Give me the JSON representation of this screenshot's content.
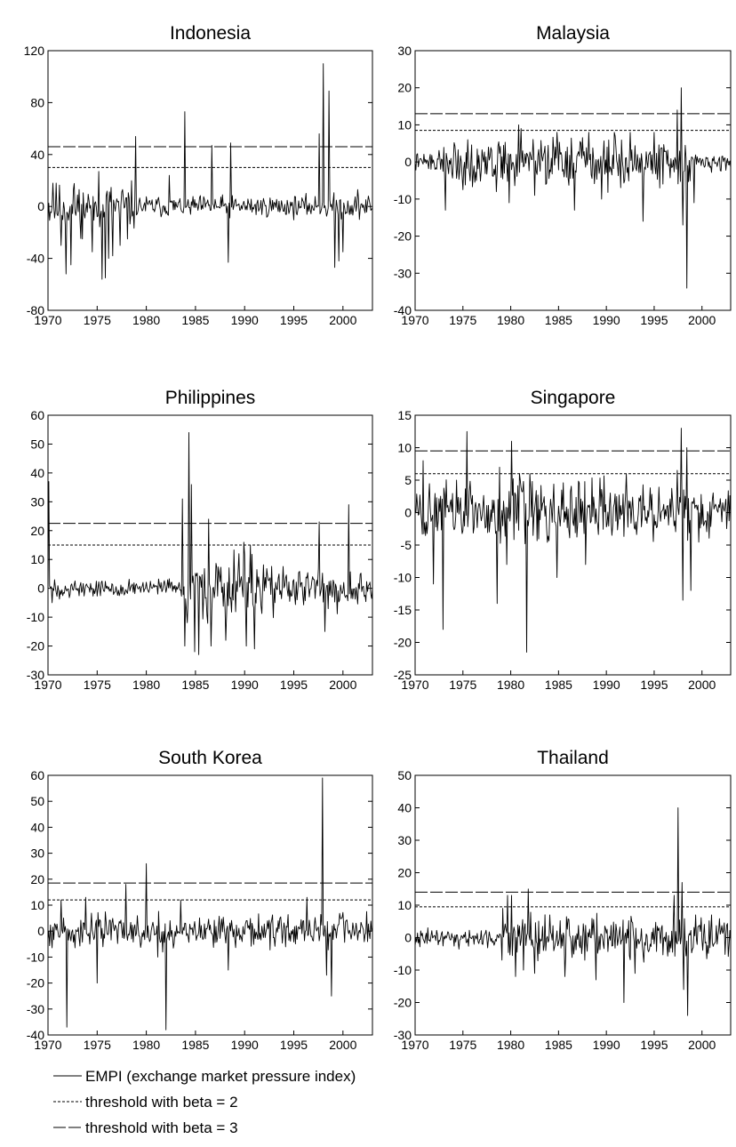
{
  "figure_type": "multi-panel time series",
  "line_color": "#000000",
  "legend": {
    "items": [
      {
        "label": "EMPI (exchange market pressure index)",
        "style": "solid"
      },
      {
        "label": "threshold with beta = 2",
        "style": "short-dash"
      },
      {
        "label": "threshold with beta = 3",
        "style": "long-dash"
      }
    ]
  },
  "chart_data": [
    {
      "type": "line",
      "title": "Indonesia",
      "x_ticks": [
        "1970",
        "1975",
        "1980",
        "1985",
        "1990",
        "1995",
        "2000"
      ],
      "xlim": [
        1970,
        2003
      ],
      "y_ticks": [
        "-80",
        "-40",
        "0",
        "40",
        "80",
        "120"
      ],
      "ylim": [
        -80,
        120
      ],
      "thresholds": [
        {
          "name": "threshold with beta = 2",
          "value": 30
        },
        {
          "name": "threshold with beta = 3",
          "value": 46
        }
      ],
      "seed": 11,
      "noise": [
        9,
        4,
        4.5
      ],
      "noise_breaks": [
        1979,
        1997.5
      ],
      "events": [
        [
          1970.5,
          18
        ],
        [
          1971.3,
          -30
        ],
        [
          1971.8,
          -52
        ],
        [
          1972.3,
          -45
        ],
        [
          1972.6,
          13
        ],
        [
          1973.5,
          -25
        ],
        [
          1974.5,
          -35
        ],
        [
          1975.2,
          27
        ],
        [
          1975.5,
          -56
        ],
        [
          1975.8,
          -55
        ],
        [
          1976.2,
          -40
        ],
        [
          1976.6,
          -38
        ],
        [
          1977.3,
          -30
        ],
        [
          1978.1,
          -25
        ],
        [
          1978.9,
          54
        ],
        [
          1982.3,
          24
        ],
        [
          1983.9,
          73
        ],
        [
          1986.7,
          47
        ],
        [
          1988.3,
          -43
        ],
        [
          1988.6,
          49
        ],
        [
          1997.6,
          56
        ],
        [
          1998.0,
          110
        ],
        [
          1998.4,
          -5
        ],
        [
          1998.6,
          89
        ],
        [
          1999.2,
          -47
        ],
        [
          1999.6,
          -42
        ],
        [
          2000.0,
          -35
        ],
        [
          2001.5,
          13
        ]
      ]
    },
    {
      "type": "line",
      "title": "Malaysia",
      "x_ticks": [
        "1970",
        "1975",
        "1980",
        "1985",
        "1990",
        "1995",
        "2000"
      ],
      "xlim": [
        1970,
        2003
      ],
      "y_ticks": [
        "-40",
        "-30",
        "-20",
        "-10",
        "0",
        "10",
        "20",
        "30"
      ],
      "ylim": [
        -40,
        30
      ],
      "thresholds": [
        {
          "name": "threshold with beta = 2",
          "value": 8.5
        },
        {
          "name": "threshold with beta = 3",
          "value": 13
        }
      ],
      "seed": 22,
      "noise": [
        1.2,
        3.2,
        1.2
      ],
      "noise_breaks": [
        1973,
        1998.8
      ],
      "events": [
        [
          1973.2,
          -13
        ],
        [
          1975.5,
          6
        ],
        [
          1978.5,
          -8
        ],
        [
          1979.8,
          -11
        ],
        [
          1980.8,
          10
        ],
        [
          1981.1,
          9
        ],
        [
          1982.5,
          -9
        ],
        [
          1984.8,
          8
        ],
        [
          1986.7,
          -13
        ],
        [
          1988.2,
          8
        ],
        [
          1989.5,
          -10
        ],
        [
          1990.8,
          8
        ],
        [
          1992.5,
          8
        ],
        [
          1993.8,
          -16
        ],
        [
          1995.0,
          8
        ],
        [
          1997.4,
          14
        ],
        [
          1997.8,
          20
        ],
        [
          1998.0,
          -17
        ],
        [
          1998.4,
          -34
        ],
        [
          1999.2,
          -11
        ]
      ]
    },
    {
      "type": "line",
      "title": "Philippines",
      "x_ticks": [
        "1970",
        "1975",
        "1980",
        "1985",
        "1990",
        "1995",
        "2000"
      ],
      "xlim": [
        1970,
        2003
      ],
      "y_ticks": [
        "-30",
        "-20",
        "-10",
        "0",
        "10",
        "20",
        "30",
        "40",
        "50",
        "60"
      ],
      "ylim": [
        -30,
        60
      ],
      "thresholds": [
        {
          "name": "threshold with beta = 2",
          "value": 15
        },
        {
          "name": "threshold with beta = 3",
          "value": 22.5
        }
      ],
      "seed": 33,
      "noise": [
        1.5,
        6,
        3
      ],
      "noise_breaks": [
        1983.5,
        1993
      ],
      "events": [
        [
          1970.1,
          37
        ],
        [
          1970.4,
          -5
        ],
        [
          1983.7,
          31
        ],
        [
          1983.9,
          -20
        ],
        [
          1984.3,
          54
        ],
        [
          1984.6,
          36
        ],
        [
          1984.9,
          -22
        ],
        [
          1985.3,
          -23
        ],
        [
          1986.3,
          24
        ],
        [
          1986.6,
          -20
        ],
        [
          1988.1,
          -18
        ],
        [
          1989.4,
          12
        ],
        [
          1989.9,
          16
        ],
        [
          1990.2,
          -20
        ],
        [
          1990.6,
          15
        ],
        [
          1991.0,
          -21
        ],
        [
          1997.6,
          23
        ],
        [
          1998.2,
          -15
        ],
        [
          2000.6,
          29
        ]
      ]
    },
    {
      "type": "line",
      "title": "Singapore",
      "x_ticks": [
        "1970",
        "1975",
        "1980",
        "1985",
        "1990",
        "1995",
        "2000"
      ],
      "xlim": [
        1970,
        2003
      ],
      "y_ticks": [
        "-25",
        "-20",
        "-15",
        "-10",
        "-5",
        "0",
        "5",
        "10",
        "15"
      ],
      "ylim": [
        -25,
        15
      ],
      "thresholds": [
        {
          "name": "threshold with beta = 2",
          "value": 6
        },
        {
          "name": "threshold with beta = 3",
          "value": 9.5
        }
      ],
      "seed": 44,
      "noise": [
        2.2,
        2.4,
        1.8
      ],
      "noise_breaks": [
        1976,
        1990
      ],
      "events": [
        [
          1970.8,
          8
        ],
        [
          1971.9,
          -11
        ],
        [
          1972.9,
          -18
        ],
        [
          1974.3,
          5
        ],
        [
          1975.4,
          12.5
        ],
        [
          1978.6,
          -14
        ],
        [
          1978.8,
          7
        ],
        [
          1979.6,
          -8
        ],
        [
          1980.1,
          11
        ],
        [
          1980.9,
          6
        ],
        [
          1981.7,
          -21.5
        ],
        [
          1982.0,
          6
        ],
        [
          1984.8,
          -10
        ],
        [
          1987.8,
          -8
        ],
        [
          1992.1,
          6
        ],
        [
          1997.4,
          6.5
        ],
        [
          1997.8,
          13
        ],
        [
          1998.0,
          -13.5
        ],
        [
          1998.4,
          10
        ],
        [
          1998.8,
          -12
        ]
      ]
    },
    {
      "type": "line",
      "title": "South Korea",
      "x_ticks": [
        "1970",
        "1975",
        "1980",
        "1985",
        "1990",
        "1995",
        "2000"
      ],
      "xlim": [
        1970,
        2003
      ],
      "y_ticks": [
        "-40",
        "-30",
        "-20",
        "-10",
        "0",
        "10",
        "20",
        "30",
        "40",
        "50",
        "60"
      ],
      "ylim": [
        -40,
        60
      ],
      "thresholds": [
        {
          "name": "threshold with beta = 2",
          "value": 12
        },
        {
          "name": "threshold with beta = 3",
          "value": 18.5
        }
      ],
      "seed": 55,
      "noise": [
        3,
        3,
        3
      ],
      "noise_breaks": [
        1985,
        1995
      ],
      "events": [
        [
          1971.3,
          12
        ],
        [
          1971.9,
          -37
        ],
        [
          1973.8,
          13
        ],
        [
          1975.0,
          -20
        ],
        [
          1977.9,
          18
        ],
        [
          1980.0,
          26
        ],
        [
          1981.2,
          -10
        ],
        [
          1982.0,
          -38
        ],
        [
          1983.5,
          12
        ],
        [
          1988.3,
          -15
        ],
        [
          1996.3,
          13
        ],
        [
          1997.9,
          59
        ],
        [
          1998.3,
          -17
        ],
        [
          1998.8,
          -25
        ]
      ]
    },
    {
      "type": "line",
      "title": "Thailand",
      "x_ticks": [
        "1970",
        "1975",
        "1980",
        "1985",
        "1990",
        "1995",
        "2000"
      ],
      "xlim": [
        1970,
        2003
      ],
      "y_ticks": [
        "-30",
        "-20",
        "-10",
        "0",
        "10",
        "20",
        "30",
        "40",
        "50"
      ],
      "ylim": [
        -30,
        50
      ],
      "thresholds": [
        {
          "name": "threshold with beta = 2",
          "value": 9.5
        },
        {
          "name": "threshold with beta = 3",
          "value": 14
        }
      ],
      "seed": 66,
      "noise": [
        1.3,
        3.2,
        3.2
      ],
      "noise_breaks": [
        1979,
        1997
      ],
      "events": [
        [
          1979.2,
          9
        ],
        [
          1979.7,
          13
        ],
        [
          1980.1,
          13
        ],
        [
          1980.5,
          -12
        ],
        [
          1981.3,
          -10
        ],
        [
          1981.8,
          15
        ],
        [
          1982.5,
          -11
        ],
        [
          1984.1,
          7
        ],
        [
          1985.7,
          -12
        ],
        [
          1988.9,
          -13
        ],
        [
          1991.8,
          -20
        ],
        [
          1993.0,
          -11
        ],
        [
          1997.1,
          13
        ],
        [
          1997.5,
          40
        ],
        [
          1997.9,
          17
        ],
        [
          1998.1,
          -16
        ],
        [
          1998.5,
          -24
        ],
        [
          1999.3,
          7
        ]
      ]
    }
  ]
}
